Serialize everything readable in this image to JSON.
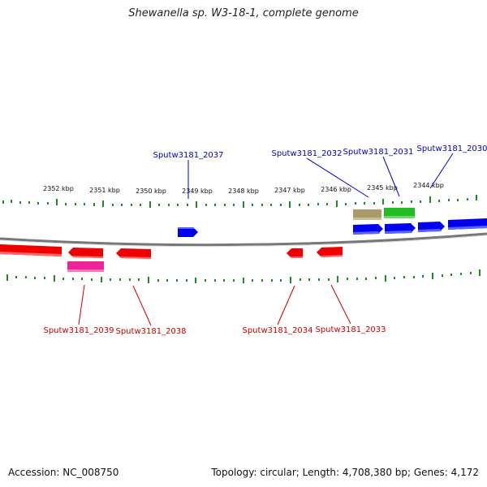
{
  "title": "Shewanella sp. W3-18-1, complete genome",
  "footer": {
    "accession": "Accession: NC_008750",
    "topology": "Topology: circular; Length: 4,708,380 bp; Genes: 4,172"
  },
  "scale_labels": [
    "2352 kbp",
    "2351 kbp",
    "2350 kbp",
    "2349 kbp",
    "2348 kbp",
    "2347 kbp",
    "2346 kbp",
    "2345 kbp",
    "2344 kbp"
  ],
  "forward_labels": [
    "Sputw3181_2037",
    "Sputw3181_2032",
    "Sputw3181_2031",
    "Sputw3181_2030"
  ],
  "reverse_labels": [
    "Sputw3181_2039",
    "Sputw3181_2038",
    "Sputw3181_2034",
    "Sputw3181_2033"
  ],
  "colors": {
    "forward": "#0000ee",
    "reverse": "#ee0000",
    "pink": "#ee2299",
    "khaki": "#a89a6a",
    "green": "#22bb22",
    "tick": "#228822",
    "backbone": "#888888"
  }
}
